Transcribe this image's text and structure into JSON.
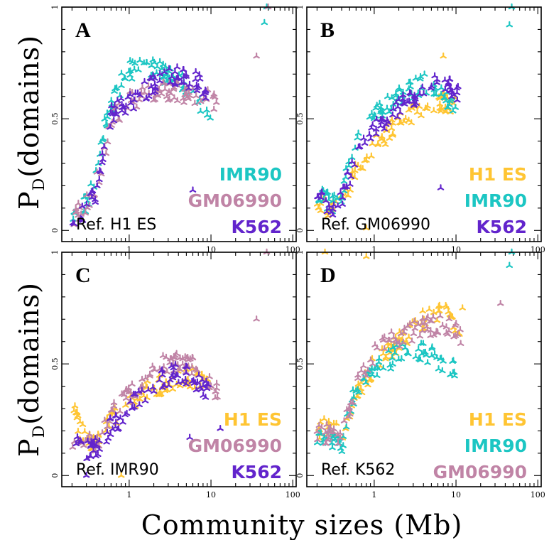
{
  "figure": {
    "ylabel": "P",
    "ylabel_sub": "D",
    "ylabel_rest": "(domains)",
    "xlabel": "Community sizes (Mb)"
  },
  "colors": {
    "H1 ES": "#FFC533",
    "IMR90": "#1CC6C3",
    "GM06990": "#C084A6",
    "K562": "#6224CC"
  },
  "chart_data": [
    {
      "type": "scatter",
      "panel": "A",
      "reference": "Ref. H1 ES",
      "legend": [
        "IMR90",
        "GM06990",
        "K562"
      ],
      "xscale": "log",
      "xlim": [
        0.15,
        110
      ],
      "ylim": [
        -0.05,
        1.0
      ],
      "xticks": [
        "1",
        "10",
        "100"
      ],
      "yticks": [
        "0",
        "0.5",
        "1"
      ],
      "series": [
        {
          "name": "IMR90",
          "trend": [
            [
              0.2,
              0.06
            ],
            [
              0.3,
              0.12
            ],
            [
              0.4,
              0.24
            ],
            [
              0.5,
              0.47
            ],
            [
              0.7,
              0.62
            ],
            [
              1,
              0.72
            ],
            [
              2,
              0.72
            ],
            [
              4,
              0.68
            ],
            [
              7,
              0.56
            ],
            [
              10,
              0.5
            ]
          ],
          "outliers": [
            [
              45,
              0.93
            ],
            [
              48,
              1.0
            ]
          ]
        },
        {
          "name": "GM06990",
          "trend": [
            [
              0.2,
              0.05
            ],
            [
              0.3,
              0.11
            ],
            [
              0.4,
              0.22
            ],
            [
              0.5,
              0.33
            ],
            [
              0.6,
              0.5
            ],
            [
              1,
              0.58
            ],
            [
              2,
              0.62
            ],
            [
              4,
              0.62
            ],
            [
              7,
              0.6
            ],
            [
              12,
              0.58
            ]
          ],
          "outliers": [
            [
              36,
              0.78
            ],
            [
              50,
              1.0
            ]
          ]
        },
        {
          "name": "K562",
          "trend": [
            [
              0.2,
              0.04
            ],
            [
              0.3,
              0.1
            ],
            [
              0.4,
              0.18
            ],
            [
              0.5,
              0.36
            ],
            [
              0.6,
              0.52
            ],
            [
              1,
              0.57
            ],
            [
              2,
              0.66
            ],
            [
              4,
              0.7
            ],
            [
              7,
              0.66
            ],
            [
              10,
              0.6
            ]
          ],
          "outliers": [
            [
              6,
              0.18
            ]
          ]
        }
      ]
    },
    {
      "type": "scatter",
      "panel": "B",
      "reference": "Ref. GM06990",
      "legend": [
        "H1 ES",
        "IMR90",
        "K562"
      ],
      "xscale": "log",
      "xlim": [
        0.15,
        110
      ],
      "ylim": [
        -0.05,
        1.0
      ],
      "xticks": [
        "1",
        "10",
        "100"
      ],
      "yticks": [
        "0",
        "0.5",
        "1"
      ],
      "series": [
        {
          "name": "H1 ES",
          "trend": [
            [
              0.2,
              0.12
            ],
            [
              0.3,
              0.09
            ],
            [
              0.4,
              0.14
            ],
            [
              0.6,
              0.27
            ],
            [
              1,
              0.38
            ],
            [
              2,
              0.48
            ],
            [
              4,
              0.56
            ],
            [
              7,
              0.58
            ],
            [
              10,
              0.55
            ]
          ],
          "outliers": [
            [
              0.8,
              0.01
            ],
            [
              7,
              0.78
            ]
          ]
        },
        {
          "name": "IMR90",
          "trend": [
            [
              0.2,
              0.18
            ],
            [
              0.3,
              0.12
            ],
            [
              0.4,
              0.17
            ],
            [
              0.6,
              0.38
            ],
            [
              1,
              0.53
            ],
            [
              2,
              0.6
            ],
            [
              4,
              0.66
            ],
            [
              7,
              0.62
            ],
            [
              10,
              0.52
            ]
          ],
          "outliers": [
            [
              45,
              0.92
            ],
            [
              48,
              1.0
            ]
          ]
        },
        {
          "name": "K562",
          "trend": [
            [
              0.2,
              0.15
            ],
            [
              0.3,
              0.1
            ],
            [
              0.4,
              0.14
            ],
            [
              0.6,
              0.33
            ],
            [
              1,
              0.45
            ],
            [
              2,
              0.55
            ],
            [
              4,
              0.63
            ],
            [
              7,
              0.68
            ],
            [
              12,
              0.58
            ]
          ],
          "outliers": [
            [
              6.5,
              0.19
            ]
          ]
        }
      ]
    },
    {
      "type": "scatter",
      "panel": "C",
      "reference": "Ref. IMR90",
      "legend": [
        "H1 ES",
        "GM06990",
        "K562"
      ],
      "xscale": "log",
      "xlim": [
        0.15,
        110
      ],
      "ylim": [
        -0.05,
        1.0
      ],
      "xticks": [
        "1",
        "10",
        "100"
      ],
      "yticks": [
        "0",
        "0.5",
        "1"
      ],
      "series": [
        {
          "name": "H1 ES",
          "trend": [
            [
              0.2,
              0.36
            ],
            [
              0.25,
              0.2
            ],
            [
              0.35,
              0.16
            ],
            [
              0.5,
              0.2
            ],
            [
              0.8,
              0.3
            ],
            [
              1.5,
              0.38
            ],
            [
              3,
              0.42
            ],
            [
              6,
              0.44
            ],
            [
              10,
              0.4
            ]
          ],
          "outliers": [
            [
              0.8,
              0.0
            ]
          ]
        },
        {
          "name": "GM06990",
          "trend": [
            [
              0.2,
              0.17
            ],
            [
              0.3,
              0.16
            ],
            [
              0.4,
              0.14
            ],
            [
              0.6,
              0.28
            ],
            [
              1,
              0.36
            ],
            [
              2,
              0.48
            ],
            [
              4,
              0.52
            ],
            [
              7,
              0.48
            ],
            [
              12,
              0.38
            ]
          ],
          "outliers": [
            [
              36,
              0.7
            ],
            [
              48,
              1.0
            ]
          ]
        },
        {
          "name": "K562",
          "trend": [
            [
              0.2,
              0.15
            ],
            [
              0.3,
              0.12
            ],
            [
              0.4,
              0.12
            ],
            [
              0.6,
              0.22
            ],
            [
              1,
              0.3
            ],
            [
              2,
              0.42
            ],
            [
              4,
              0.46
            ],
            [
              7,
              0.42
            ],
            [
              10,
              0.36
            ]
          ],
          "outliers": [
            [
              5.5,
              0.17
            ],
            [
              13,
              0.21
            ],
            [
              0.3,
              0.0
            ]
          ]
        }
      ]
    },
    {
      "type": "scatter",
      "panel": "D",
      "reference": "Ref. K562",
      "legend": [
        "H1 ES",
        "IMR90",
        "GM06990"
      ],
      "xscale": "log",
      "xlim": [
        0.15,
        110
      ],
      "ylim": [
        -0.05,
        1.0
      ],
      "xticks": [
        "1",
        "10",
        "100"
      ],
      "yticks": [
        "0",
        "0.5",
        "1"
      ],
      "series": [
        {
          "name": "H1 ES",
          "trend": [
            [
              0.2,
              0.2
            ],
            [
              0.3,
              0.22
            ],
            [
              0.4,
              0.18
            ],
            [
              0.6,
              0.35
            ],
            [
              1,
              0.5
            ],
            [
              2,
              0.6
            ],
            [
              4,
              0.7
            ],
            [
              7,
              0.75
            ],
            [
              12,
              0.58
            ]
          ],
          "outliers": [
            [
              0.25,
              1.0
            ],
            [
              0.8,
              0.98
            ],
            [
              12,
              0.75
            ]
          ]
        },
        {
          "name": "IMR90",
          "trend": [
            [
              0.2,
              0.18
            ],
            [
              0.3,
              0.16
            ],
            [
              0.4,
              0.14
            ],
            [
              0.6,
              0.4
            ],
            [
              1,
              0.46
            ],
            [
              2,
              0.55
            ],
            [
              4,
              0.56
            ],
            [
              7,
              0.5
            ],
            [
              10,
              0.48
            ]
          ],
          "outliers": [
            [
              45,
              0.94
            ],
            [
              48,
              1.0
            ]
          ]
        },
        {
          "name": "GM06990",
          "trend": [
            [
              0.2,
              0.2
            ],
            [
              0.3,
              0.18
            ],
            [
              0.4,
              0.16
            ],
            [
              0.6,
              0.42
            ],
            [
              1,
              0.55
            ],
            [
              2,
              0.62
            ],
            [
              4,
              0.66
            ],
            [
              7,
              0.68
            ],
            [
              12,
              0.62
            ]
          ],
          "outliers": [
            [
              35,
              0.77
            ]
          ]
        }
      ]
    }
  ]
}
